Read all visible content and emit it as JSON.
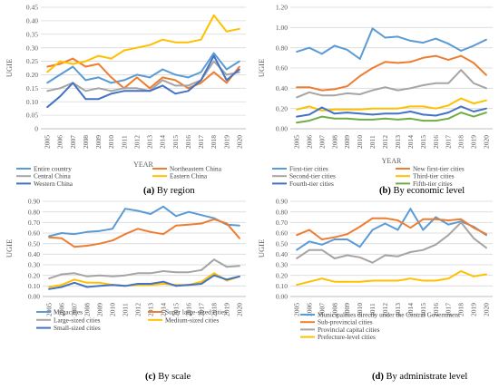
{
  "chart_data": [
    {
      "type": "line",
      "xlabel": "YEAR",
      "ylabel": "UGIE",
      "ylim": [
        0,
        0.45
      ],
      "yticks": [
        "0",
        "0.05",
        "0.10",
        "0.15",
        "0.20",
        "0.25",
        "0.30",
        "0.35",
        "0.40",
        "0.45"
      ],
      "ytick_values": [
        0,
        0.05,
        0.1,
        0.15,
        0.2,
        0.25,
        0.3,
        0.35,
        0.4,
        0.45
      ],
      "categories": [
        "2005",
        "2006",
        "2007",
        "2008",
        "2009",
        "2010",
        "2011",
        "2012",
        "2013",
        "2014",
        "2015",
        "2016",
        "2017",
        "2018",
        "2019",
        "2020"
      ],
      "grid": true,
      "caption": {
        "label": "(a)",
        "text": " By region"
      },
      "legend_cols": 2,
      "series": [
        {
          "name": "Entire country",
          "color": "#5B9BD5",
          "values": [
            0.17,
            0.2,
            0.23,
            0.18,
            0.19,
            0.17,
            0.18,
            0.2,
            0.19,
            0.22,
            0.2,
            0.19,
            0.21,
            0.28,
            0.22,
            0.25
          ]
        },
        {
          "name": "Northeastern China",
          "color": "#ED7D31",
          "values": [
            0.23,
            0.24,
            0.26,
            0.23,
            0.24,
            0.19,
            0.15,
            0.19,
            0.15,
            0.19,
            0.18,
            0.15,
            0.17,
            0.21,
            0.17,
            0.23
          ]
        },
        {
          "name": "Central China",
          "color": "#A5A5A5",
          "values": [
            0.14,
            0.15,
            0.17,
            0.14,
            0.15,
            0.14,
            0.15,
            0.15,
            0.14,
            0.18,
            0.16,
            0.16,
            0.18,
            0.25,
            0.2,
            0.21
          ]
        },
        {
          "name": "Eastern China",
          "color": "#FFC000",
          "values": [
            0.21,
            0.25,
            0.24,
            0.25,
            0.27,
            0.26,
            0.29,
            0.3,
            0.31,
            0.33,
            0.32,
            0.32,
            0.33,
            0.42,
            0.36,
            0.37
          ]
        },
        {
          "name": "Western China",
          "color": "#4472C4",
          "values": [
            0.08,
            0.12,
            0.17,
            0.11,
            0.11,
            0.13,
            0.14,
            0.14,
            0.14,
            0.16,
            0.13,
            0.14,
            0.18,
            0.27,
            0.18,
            0.22
          ]
        }
      ]
    },
    {
      "type": "line",
      "xlabel": "YEAR",
      "ylabel": "UGIE",
      "ylim": [
        0,
        1.2
      ],
      "yticks": [
        "0.00",
        "0.20",
        "0.40",
        "0.60",
        "0.80",
        "1.00",
        "1.20"
      ],
      "ytick_values": [
        0,
        0.2,
        0.4,
        0.6,
        0.8,
        1.0,
        1.2
      ],
      "categories": [
        "2005",
        "2006",
        "2007",
        "2008",
        "2009",
        "2010",
        "2011",
        "2012",
        "2013",
        "2014",
        "2015",
        "2016",
        "2017",
        "2018",
        "2019",
        "2020"
      ],
      "grid": true,
      "caption": {
        "label": "(b)",
        "text": " By economic level"
      },
      "legend_cols": 2,
      "series": [
        {
          "name": "First-tier cities",
          "color": "#5B9BD5",
          "values": [
            0.76,
            0.8,
            0.74,
            0.82,
            0.78,
            0.69,
            0.99,
            0.9,
            0.91,
            0.87,
            0.85,
            0.89,
            0.84,
            0.77,
            0.82,
            0.88
          ]
        },
        {
          "name": "New first-tier cities",
          "color": "#ED7D31",
          "values": [
            0.41,
            0.41,
            0.38,
            0.39,
            0.42,
            0.52,
            0.6,
            0.66,
            0.65,
            0.66,
            0.7,
            0.72,
            0.68,
            0.72,
            0.65,
            0.53
          ]
        },
        {
          "name": "Second-tier cities",
          "color": "#A5A5A5",
          "values": [
            0.31,
            0.36,
            0.33,
            0.33,
            0.35,
            0.34,
            0.38,
            0.41,
            0.38,
            0.4,
            0.43,
            0.45,
            0.45,
            0.58,
            0.45,
            0.4
          ]
        },
        {
          "name": "Third-tier cities",
          "color": "#FFC000",
          "values": [
            0.19,
            0.22,
            0.18,
            0.19,
            0.19,
            0.19,
            0.2,
            0.2,
            0.2,
            0.22,
            0.22,
            0.2,
            0.23,
            0.3,
            0.25,
            0.28
          ]
        },
        {
          "name": "Fourth-tier cities",
          "color": "#4472C4",
          "values": [
            0.12,
            0.14,
            0.21,
            0.15,
            0.16,
            0.15,
            0.14,
            0.15,
            0.15,
            0.17,
            0.14,
            0.13,
            0.16,
            0.22,
            0.17,
            0.2
          ]
        },
        {
          "name": "Fifth-tier cities",
          "color": "#70AD47",
          "values": [
            0.06,
            0.08,
            0.12,
            0.1,
            0.1,
            0.09,
            0.09,
            0.1,
            0.09,
            0.1,
            0.08,
            0.08,
            0.1,
            0.16,
            0.12,
            0.16
          ]
        }
      ]
    },
    {
      "type": "line",
      "xlabel": "",
      "ylabel": "UGIE",
      "ylim": [
        0,
        0.9
      ],
      "yticks": [
        "0.00",
        "0.10",
        "0.20",
        "0.30",
        "0.40",
        "0.50",
        "0.60",
        "0.70",
        "0.80",
        "0.90"
      ],
      "ytick_values": [
        0,
        0.1,
        0.2,
        0.3,
        0.4,
        0.5,
        0.6,
        0.7,
        0.8,
        0.9
      ],
      "categories": [
        "2005",
        "2006",
        "2007",
        "2008",
        "2009",
        "2010",
        "2011",
        "2012",
        "2013",
        "2014",
        "2015",
        "2016",
        "2017",
        "2018",
        "2019",
        "2020"
      ],
      "grid": true,
      "caption": {
        "label": "(c)",
        "text": " By scale"
      },
      "legend_cols": 2,
      "series": [
        {
          "name": "Megacities",
          "color": "#5B9BD5",
          "values": [
            0.57,
            0.6,
            0.59,
            0.61,
            0.62,
            0.64,
            0.83,
            0.81,
            0.78,
            0.85,
            0.76,
            0.8,
            0.77,
            0.74,
            0.68,
            0.67
          ]
        },
        {
          "name": "Super large-sized cities",
          "color": "#ED7D31",
          "values": [
            0.56,
            0.55,
            0.47,
            0.48,
            0.5,
            0.53,
            0.59,
            0.64,
            0.61,
            0.59,
            0.67,
            0.68,
            0.69,
            0.73,
            0.69,
            0.55
          ]
        },
        {
          "name": "Large-sized cities",
          "color": "#A5A5A5",
          "values": [
            0.17,
            0.21,
            0.22,
            0.19,
            0.2,
            0.19,
            0.2,
            0.22,
            0.22,
            0.24,
            0.23,
            0.23,
            0.25,
            0.35,
            0.28,
            0.29
          ]
        },
        {
          "name": "Medium-sized cities",
          "color": "#FFC000",
          "values": [
            0.09,
            0.11,
            0.16,
            0.13,
            0.13,
            0.11,
            0.1,
            0.11,
            0.11,
            0.12,
            0.11,
            0.11,
            0.14,
            0.22,
            0.15,
            0.19
          ]
        },
        {
          "name": "Small-sized cities",
          "color": "#4472C4",
          "values": [
            0.07,
            0.09,
            0.13,
            0.09,
            0.1,
            0.11,
            0.1,
            0.12,
            0.12,
            0.14,
            0.1,
            0.11,
            0.12,
            0.2,
            0.16,
            0.19
          ]
        }
      ]
    },
    {
      "type": "line",
      "xlabel": "",
      "ylabel": "UGIE",
      "ylim": [
        0,
        0.9
      ],
      "yticks": [
        "0.00",
        "0.10",
        "0.20",
        "0.30",
        "0.40",
        "0.50",
        "0.60",
        "0.70",
        "0.80",
        "0.90"
      ],
      "ytick_values": [
        0,
        0.1,
        0.2,
        0.3,
        0.4,
        0.5,
        0.6,
        0.7,
        0.8,
        0.9
      ],
      "categories": [
        "2005",
        "2006",
        "2007",
        "2008",
        "2009",
        "2010",
        "2011",
        "2012",
        "2013",
        "2014",
        "2015",
        "2016",
        "2017",
        "2018",
        "2019",
        "2020"
      ],
      "grid": true,
      "caption": {
        "label": "(d)",
        "text": " By administrate level"
      },
      "legend_cols": 1,
      "series": [
        {
          "name": "Municipalities directly under the Central Government",
          "color": "#5B9BD5",
          "values": [
            0.44,
            0.52,
            0.49,
            0.54,
            0.54,
            0.47,
            0.63,
            0.69,
            0.63,
            0.83,
            0.63,
            0.75,
            0.68,
            0.71,
            0.66,
            0.58
          ]
        },
        {
          "name": "Sub-provincial cities",
          "color": "#ED7D31",
          "values": [
            0.58,
            0.63,
            0.54,
            0.56,
            0.59,
            0.66,
            0.74,
            0.74,
            0.72,
            0.65,
            0.73,
            0.73,
            0.72,
            0.73,
            0.65,
            0.59
          ]
        },
        {
          "name": "Provincial capital cities",
          "color": "#A5A5A5",
          "values": [
            0.36,
            0.44,
            0.44,
            0.36,
            0.39,
            0.37,
            0.32,
            0.39,
            0.38,
            0.42,
            0.44,
            0.49,
            0.58,
            0.7,
            0.55,
            0.46
          ]
        },
        {
          "name": "Prefecture-level cities",
          "color": "#FFC000",
          "values": [
            0.11,
            0.14,
            0.17,
            0.14,
            0.14,
            0.14,
            0.15,
            0.15,
            0.15,
            0.17,
            0.15,
            0.15,
            0.17,
            0.24,
            0.19,
            0.21
          ]
        }
      ]
    }
  ]
}
